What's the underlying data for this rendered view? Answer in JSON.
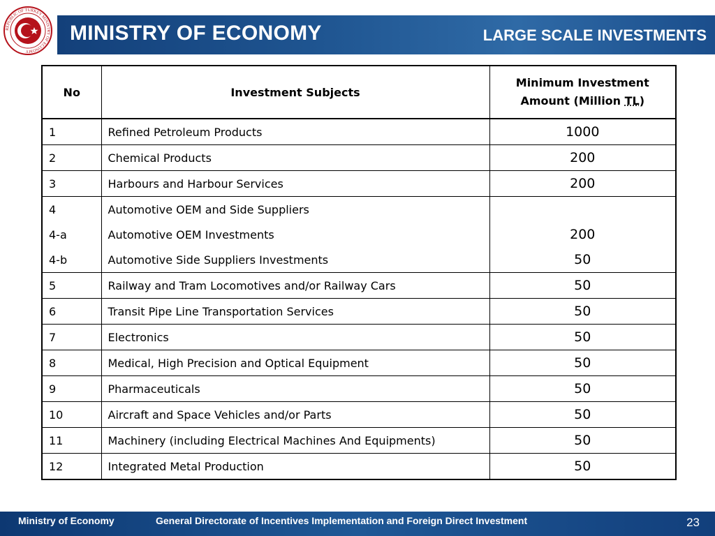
{
  "header": {
    "title": "MINISTRY OF ECONOMY",
    "subtitle": "LARGE SCALE INVESTMENTS"
  },
  "logo": {
    "ring_text": "REPUBLIC OF TURKEY MINISTRY OF ECONOMY",
    "colors": {
      "ring": "#b5121b",
      "star_crescent": "#ffffff"
    }
  },
  "table": {
    "headers": {
      "no": "No",
      "subject": "Investment Subjects",
      "amount_line1": "Minimum Investment",
      "amount_line2_prefix": "Amount (Million ",
      "amount_unit": "TL",
      "amount_line2_suffix": ")"
    },
    "rows": [
      {
        "no": "1",
        "subject": "Refined Petroleum Products",
        "amount": "1000"
      },
      {
        "no": "2",
        "subject": "Chemical Products",
        "amount": "200"
      },
      {
        "no": "3",
        "subject": "Harbours and Harbour Services",
        "amount": "200"
      },
      {
        "no": "4",
        "subject": "Automotive OEM and Side Suppliers",
        "amount": ""
      },
      {
        "no": "4-a",
        "subject": "Automotive OEM Investments",
        "amount": "200"
      },
      {
        "no": "4-b",
        "subject": "Automotive Side Suppliers Investments",
        "amount": "50"
      },
      {
        "no": "5",
        "subject": "Railway and Tram Locomotives and/or Railway Cars",
        "amount": "50"
      },
      {
        "no": "6",
        "subject": "Transit Pipe Line Transportation Services",
        "amount": "50"
      },
      {
        "no": "7",
        "subject": "Electronics",
        "amount": "50"
      },
      {
        "no": "8",
        "subject": "Medical, High Precision and Optical Equipment",
        "amount": "50"
      },
      {
        "no": "9",
        "subject": "Pharmaceuticals",
        "amount": "50"
      },
      {
        "no": "10",
        "subject": "Aircraft and Space Vehicles and/or Parts",
        "amount": "50"
      },
      {
        "no": "11",
        "subject": "Machinery (including Electrical Machines And Equipments)",
        "amount": "50"
      },
      {
        "no": "12",
        "subject": "Integrated Metal Production",
        "amount": "50"
      }
    ]
  },
  "footer": {
    "left": "Ministry of Economy",
    "middle": "General Directorate of Incentives Implementation and Foreign Direct Investment",
    "page_number": "23"
  },
  "colors": {
    "header_blue": "#1f5591",
    "footer_blue": "#1a4d8a",
    "text": "#000000"
  }
}
